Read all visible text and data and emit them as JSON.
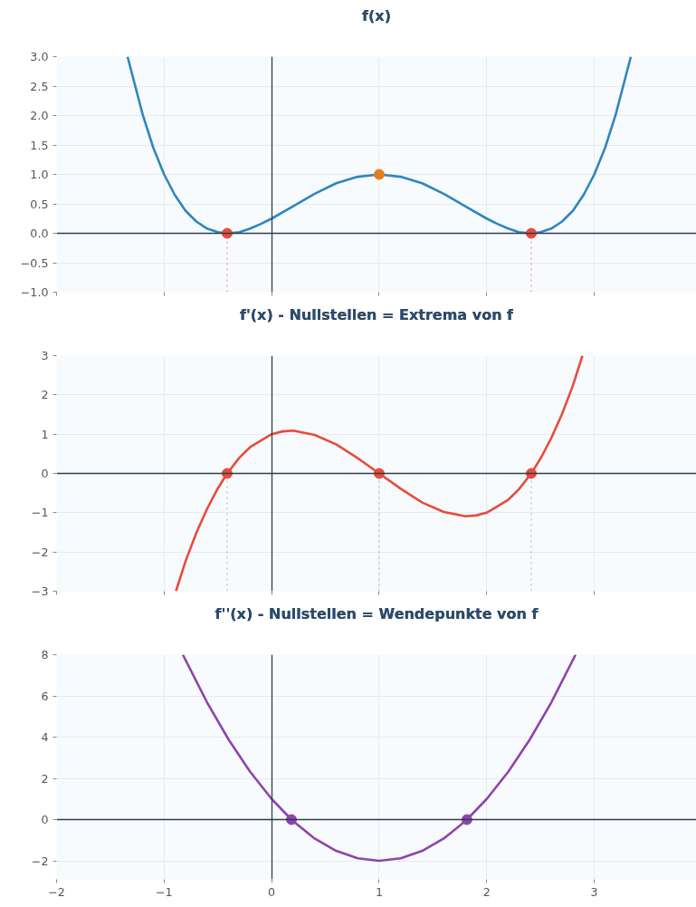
{
  "chart_data": [
    {
      "type": "line",
      "title": "f(x)",
      "xlim": [
        -2,
        3.95
      ],
      "xticks": [
        -2,
        -1,
        0,
        1,
        2,
        3
      ],
      "ylim": [
        -1,
        3
      ],
      "yticks": [
        {
          "value": -1,
          "label": "−1.0"
        },
        {
          "value": -0.5,
          "label": "−0.5"
        },
        {
          "value": 0,
          "label": "0.0"
        },
        {
          "value": 0.5,
          "label": "0.5"
        },
        {
          "value": 1,
          "label": "1.0"
        },
        {
          "value": 1.5,
          "label": "1.5"
        },
        {
          "value": 2,
          "label": "2.0"
        },
        {
          "value": 2.5,
          "label": "2.5"
        },
        {
          "value": 3,
          "label": "3.0"
        }
      ],
      "grid": true,
      "tick_labels": "y",
      "line_style": "solid",
      "series": [
        {
          "color": "#2e86c1",
          "x": [
            -1.34,
            -1.2,
            -1.1,
            -1.0,
            -0.9,
            -0.8,
            -0.7,
            -0.6,
            -0.5,
            -0.414,
            -0.3,
            -0.2,
            -0.1,
            0,
            0.2,
            0.4,
            0.6,
            0.8,
            1.0,
            1.2,
            1.4,
            1.6,
            1.8,
            2.0,
            2.1,
            2.2,
            2.3,
            2.414,
            2.5,
            2.6,
            2.7,
            2.8,
            2.9,
            3.0,
            3.1,
            3.2,
            3.34
          ],
          "values": [
            3.0,
            2.02,
            1.45,
            1.0,
            0.65,
            0.38,
            0.2,
            0.08,
            0.02,
            0,
            0.02,
            0.08,
            0.16,
            0.25,
            0.46,
            0.67,
            0.85,
            0.96,
            1.0,
            0.96,
            0.85,
            0.67,
            0.46,
            0.25,
            0.16,
            0.08,
            0.02,
            0,
            0.02,
            0.08,
            0.2,
            0.38,
            0.65,
            1.0,
            1.45,
            2.02,
            3.0
          ]
        },
        {
          "type": "scatter",
          "color": "#e74c3c",
          "x": [
            -0.414,
            2.414
          ],
          "values": [
            0,
            0
          ]
        },
        {
          "type": "scatter",
          "color": "#e67e22",
          "x": [
            1
          ],
          "values": [
            1
          ]
        }
      ],
      "ref_lines": [
        {
          "axis": "x",
          "value": -0.414,
          "color": "#f1948a",
          "line_style": "dotted"
        },
        {
          "axis": "x",
          "value": 2.414,
          "color": "#f1948a",
          "line_style": "dotted"
        }
      ]
    },
    {
      "type": "line",
      "title": "f'(x) - Nullstellen = Extrema von f",
      "xlim": [
        -2,
        3.95
      ],
      "xticks": [
        -2,
        -1,
        0,
        1,
        2,
        3
      ],
      "ylim": [
        -3,
        3
      ],
      "yticks": [
        {
          "value": -3,
          "label": "−3"
        },
        {
          "value": -2,
          "label": "−2"
        },
        {
          "value": -1,
          "label": "−1"
        },
        0,
        1,
        2,
        3
      ],
      "grid": true,
      "tick_labels": "y",
      "line_style": "solid",
      "series": [
        {
          "color": "#e74c3c",
          "x": [
            -0.89,
            -0.8,
            -0.7,
            -0.6,
            -0.5,
            -0.414,
            -0.3,
            -0.2,
            0,
            0.1,
            0.2,
            0.4,
            0.6,
            0.8,
            1.0,
            1.2,
            1.4,
            1.6,
            1.8,
            1.9,
            2.0,
            2.2,
            2.3,
            2.414,
            2.5,
            2.6,
            2.7,
            2.8,
            2.89
          ],
          "values": [
            -3.0,
            -2.23,
            -1.51,
            -0.9,
            -0.38,
            0,
            0.4,
            0.67,
            1.0,
            1.07,
            1.09,
            0.98,
            0.74,
            0.39,
            0,
            -0.39,
            -0.74,
            -0.98,
            -1.09,
            -1.07,
            -1.0,
            -0.67,
            -0.4,
            0,
            0.38,
            0.9,
            1.51,
            2.23,
            3.0
          ]
        },
        {
          "type": "scatter",
          "color": "#e74c3c",
          "x": [
            -0.414,
            1,
            2.414
          ],
          "values": [
            0,
            0,
            0
          ]
        }
      ],
      "ref_lines": [
        {
          "axis": "x",
          "value": -0.414,
          "color": "#bbbbbb",
          "line_style": "dotted"
        },
        {
          "axis": "x",
          "value": 1,
          "color": "#bbbbbb",
          "line_style": "dotted"
        },
        {
          "axis": "x",
          "value": 2.414,
          "color": "#bbbbbb",
          "line_style": "dotted"
        }
      ]
    },
    {
      "type": "line",
      "title": "f''(x) - Nullstellen = Wendepunkte von f",
      "xlim": [
        -2,
        3.95
      ],
      "xticks": [
        {
          "value": -2,
          "label": "−2"
        },
        {
          "value": -1,
          "label": "−1"
        },
        0,
        1,
        2,
        3
      ],
      "ylim": [
        -2.9,
        8
      ],
      "yticks": [
        {
          "value": -2,
          "label": "−2"
        },
        0,
        2,
        4,
        6,
        8
      ],
      "grid": true,
      "line_style": "solid",
      "series": [
        {
          "color": "#8e44ad",
          "x": [
            -0.826,
            -0.6,
            -0.4,
            -0.2,
            0,
            0.184,
            0.2,
            0.4,
            0.6,
            0.8,
            1.0,
            1.2,
            1.4,
            1.6,
            1.8,
            1.816,
            2.0,
            2.2,
            2.4,
            2.6,
            2.826
          ],
          "values": [
            8,
            5.68,
            3.88,
            2.32,
            1,
            0,
            -0.08,
            -0.92,
            -1.52,
            -1.88,
            -2,
            -1.88,
            -1.52,
            -0.92,
            -0.08,
            0,
            1,
            2.32,
            3.88,
            5.68,
            8
          ]
        },
        {
          "type": "scatter",
          "color": "#8e44ad",
          "x": [
            0.184,
            1.816
          ],
          "values": [
            0,
            0
          ]
        }
      ]
    }
  ]
}
